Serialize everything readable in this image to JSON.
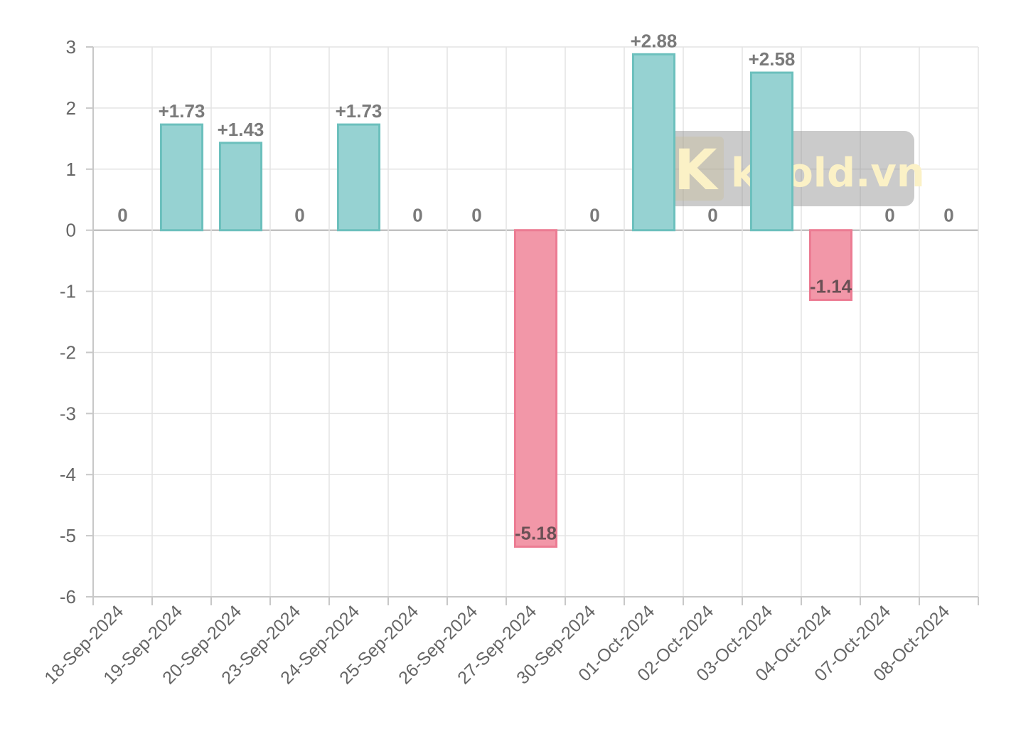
{
  "colors": {
    "positive_fill": "#96d2d2",
    "positive_stroke": "#6cc0bd",
    "negative_fill": "#f297a8",
    "negative_stroke": "#ec7c93",
    "grid": "#e3e3e3",
    "text": "#666666"
  },
  "watermark": {
    "text": "kgold.vn",
    "logo_letter": "K"
  },
  "chart_data": {
    "type": "bar",
    "title": "",
    "xlabel": "",
    "ylabel": "",
    "ylim": [
      -6,
      3
    ],
    "yticks": [
      3,
      2,
      1,
      0,
      -1,
      -2,
      -3,
      -4,
      -5,
      -6
    ],
    "grid": true,
    "categories": [
      "18-Sep-2024",
      "19-Sep-2024",
      "20-Sep-2024",
      "23-Sep-2024",
      "24-Sep-2024",
      "25-Sep-2024",
      "26-Sep-2024",
      "27-Sep-2024",
      "30-Sep-2024",
      "01-Oct-2024",
      "02-Oct-2024",
      "03-Oct-2024",
      "04-Oct-2024",
      "07-Oct-2024",
      "08-Oct-2024"
    ],
    "values": [
      0,
      1.73,
      1.43,
      0,
      1.73,
      0,
      0,
      -5.18,
      0,
      2.88,
      0,
      2.58,
      -1.14,
      0,
      0
    ],
    "data_labels": [
      "0",
      "+1.73",
      "+1.43",
      "0",
      "+1.73",
      "0",
      "0",
      "-5.18",
      "0",
      "+2.88",
      "0",
      "+2.58",
      "-1.14",
      "0",
      "0"
    ]
  }
}
